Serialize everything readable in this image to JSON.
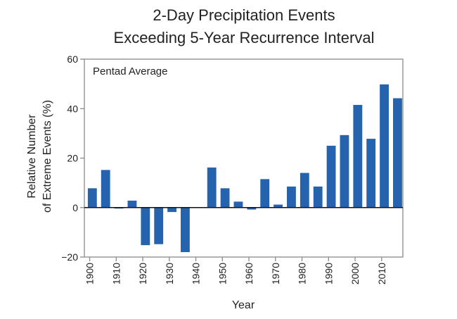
{
  "chart_data": {
    "type": "bar",
    "title": [
      "2-Day Precipitation Events",
      "Exceeding 5-Year Recurrence Interval"
    ],
    "annotation": "Pentad Average",
    "xlabel": "Year",
    "ylabel": [
      "Relative Number",
      "of Extreme Events (%)"
    ],
    "ylim": [
      -20,
      60
    ],
    "xlim": [
      1898,
      2018
    ],
    "yticks": [
      -20,
      0,
      20,
      40,
      60
    ],
    "ytick_labels": [
      "−20",
      "0",
      "20",
      "40",
      "60"
    ],
    "xticks": [
      1900,
      1910,
      1920,
      1930,
      1940,
      1950,
      1960,
      1970,
      1980,
      1990,
      2000,
      2010
    ],
    "xtick_labels": [
      "1900",
      "1910",
      "1920",
      "1930",
      "1940",
      "1950",
      "1960",
      "1970",
      "1980",
      "1990",
      "2000",
      "2010"
    ],
    "bar_width_years": 3.4,
    "bar_color": "#2563ae",
    "grid": false,
    "x": [
      1901,
      1906,
      1911,
      1916,
      1921,
      1926,
      1931,
      1936,
      1941,
      1946,
      1951,
      1956,
      1961,
      1966,
      1971,
      1976,
      1981,
      1986,
      1991,
      1996,
      2001,
      2006,
      2011,
      2016
    ],
    "values": [
      7.8,
      15.2,
      -0.4,
      2.8,
      -15.2,
      -14.8,
      -1.8,
      -18.0,
      0,
      16.2,
      7.8,
      2.4,
      -0.8,
      11.5,
      1.2,
      8.5,
      14.0,
      8.5,
      25.0,
      29.3,
      41.5,
      27.8,
      49.8,
      44.2
    ]
  }
}
